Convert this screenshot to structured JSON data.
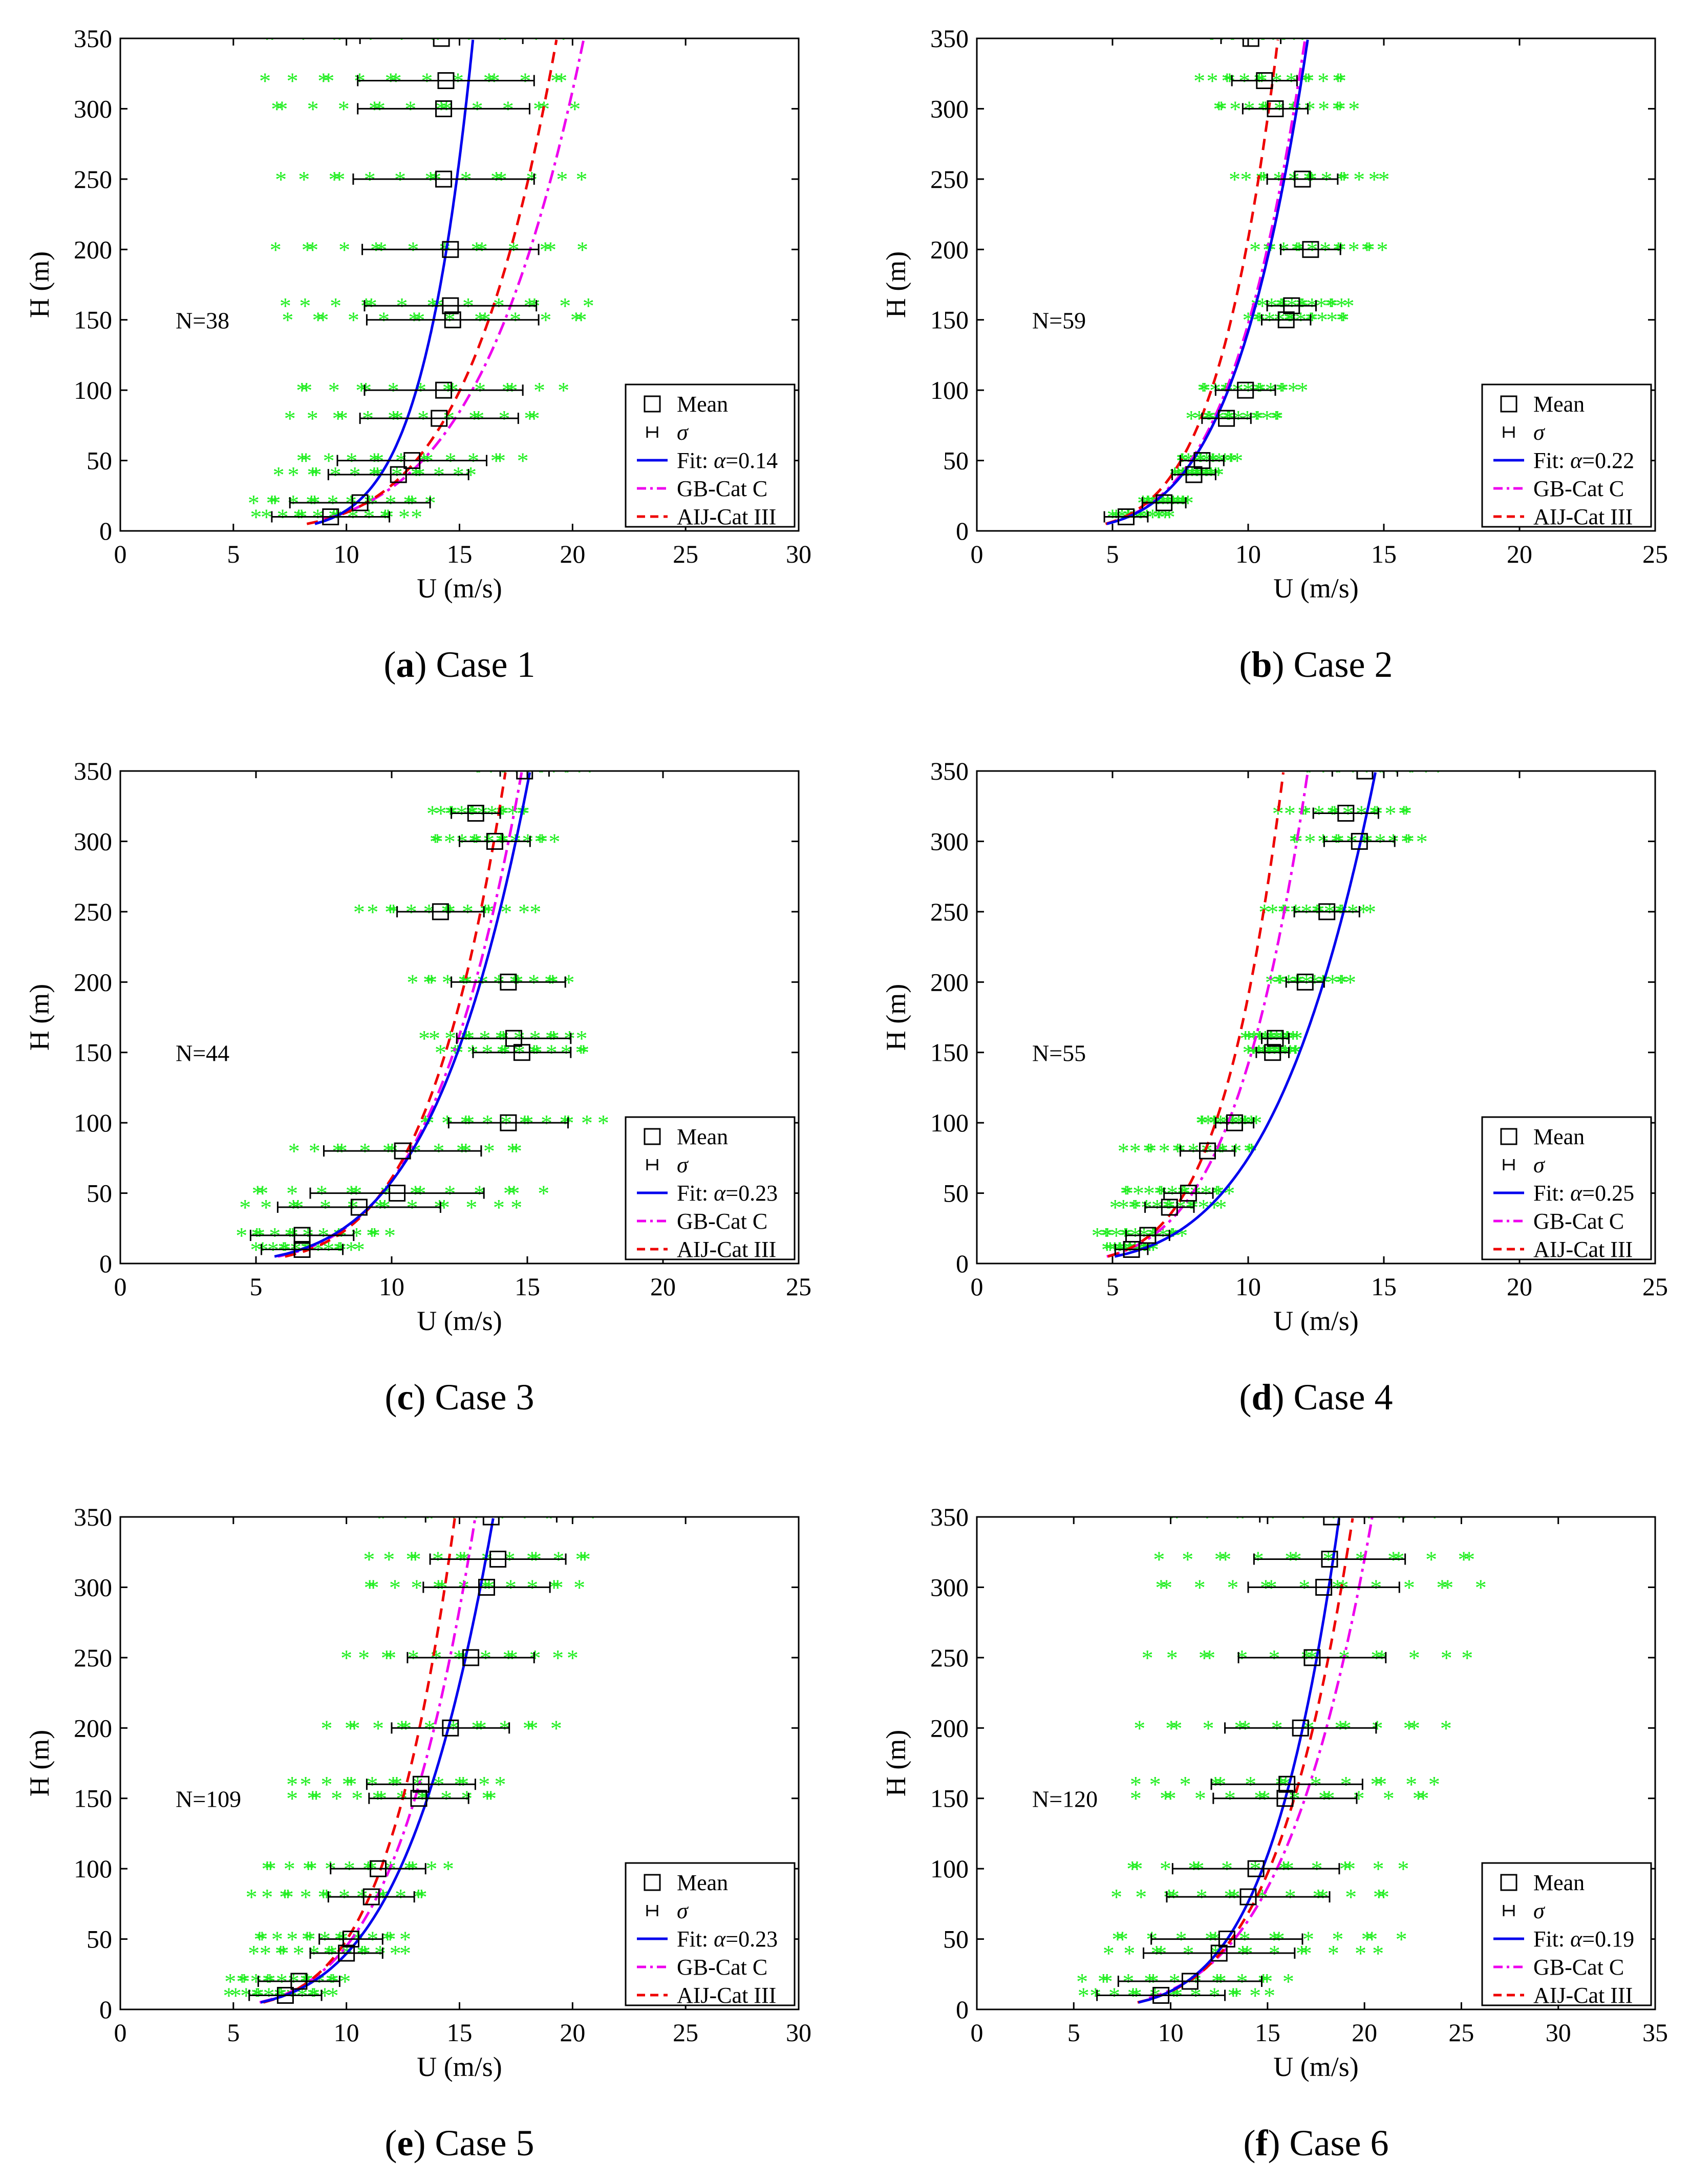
{
  "colors": {
    "scatter": "#22ee22",
    "fit": "#0000ee",
    "gb": "#ee00ee",
    "aij": "#ee0000",
    "axis": "#000000",
    "errorbar": "#000000",
    "mean_marker": "#000000"
  },
  "chart_data": [
    {
      "type": "line",
      "panel": "a",
      "caption_letter": "a",
      "caption_text": "Case 1",
      "n_label": "N=38",
      "xlabel": "U (m/s)",
      "ylabel": "H (m)",
      "xlim": [
        0,
        30
      ],
      "ylim": [
        0,
        350
      ],
      "xticks": [
        "0",
        "5",
        "10",
        "15",
        "20",
        "25",
        "30"
      ],
      "yticks": [
        "0",
        "50",
        "100",
        "150",
        "200",
        "250",
        "300",
        "350"
      ],
      "legend": {
        "mean": "Mean",
        "sigma": "σ",
        "fit_prefix": "Fit: ",
        "fit_alpha": "α",
        "fit_value": "=0.14",
        "gb": "GB-Cat C",
        "aij": "AIJ-Cat III"
      },
      "fit": {
        "alpha": 0.14,
        "u_ref": 15.6,
        "h_min": 5
      },
      "gb": {
        "alpha": 0.22,
        "u_ref": 20.5,
        "h_min": 8
      },
      "aij": {
        "alpha": 0.2,
        "u_ref": 19.3,
        "h_min": 5
      },
      "heights": [
        10,
        20,
        40,
        50,
        80,
        100,
        150,
        160,
        200,
        250,
        300,
        320,
        350
      ],
      "means": [
        9.3,
        10.6,
        12.3,
        12.9,
        14.1,
        14.3,
        14.7,
        14.6,
        14.6,
        14.3,
        14.3,
        14.4,
        14.2
      ],
      "sigma": [
        2.6,
        3.1,
        3.1,
        3.3,
        3.5,
        3.5,
        3.8,
        3.8,
        3.9,
        4.0,
        3.8,
        3.9,
        3.6
      ],
      "scatter": [
        [
          6.0,
          13.1
        ],
        [
          5.8,
          13.8
        ],
        [
          7.0,
          15.5
        ],
        [
          7.8,
          17.8
        ],
        [
          7.5,
          18.7
        ],
        [
          7.6,
          19.6
        ],
        [
          7.4,
          20.7
        ],
        [
          7.3,
          20.7
        ],
        [
          6.7,
          20.6
        ],
        [
          7.1,
          20.4
        ],
        [
          6.6,
          20.1
        ],
        [
          6.4,
          20.0
        ],
        [
          6.0,
          19.6
        ]
      ]
    },
    {
      "type": "line",
      "panel": "b",
      "caption_letter": "b",
      "caption_text": "Case 2",
      "n_label": "N=59",
      "xlabel": "U (m/s)",
      "ylabel": "H (m)",
      "xlim": [
        0,
        25
      ],
      "ylim": [
        0,
        350
      ],
      "xticks": [
        "0",
        "5",
        "10",
        "15",
        "20",
        "25"
      ],
      "yticks": [
        "0",
        "50",
        "100",
        "150",
        "200",
        "250",
        "300",
        "350"
      ],
      "legend": {
        "mean": "Mean",
        "sigma": "σ",
        "fit_prefix": "Fit: ",
        "fit_alpha": "α",
        "fit_value": "=0.22",
        "gb": "GB-Cat C",
        "aij": "AIJ-Cat III"
      },
      "fit": {
        "alpha": 0.22,
        "u_ref": 12.2,
        "h_min": 5
      },
      "gb": {
        "alpha": 0.22,
        "u_ref": 12.1,
        "h_min": 5
      },
      "aij": {
        "alpha": 0.2,
        "u_ref": 11.1,
        "h_min": 5
      },
      "heights": [
        10,
        20,
        40,
        50,
        80,
        100,
        150,
        160,
        200,
        250,
        300,
        320,
        350
      ],
      "means": [
        5.5,
        6.9,
        8.0,
        8.3,
        9.2,
        9.9,
        11.4,
        11.6,
        12.3,
        12.0,
        11.0,
        10.6,
        10.1
      ],
      "sigma": [
        0.8,
        0.8,
        0.8,
        0.8,
        0.9,
        1.1,
        0.9,
        0.9,
        1.1,
        1.3,
        1.2,
        1.2,
        1.1
      ],
      "scatter": [
        [
          5.0,
          7.1
        ],
        [
          6.1,
          7.8
        ],
        [
          7.3,
          8.9
        ],
        [
          7.5,
          9.6
        ],
        [
          7.9,
          11.2
        ],
        [
          8.2,
          12.0
        ],
        [
          10.0,
          13.6
        ],
        [
          10.3,
          13.7
        ],
        [
          10.2,
          15.0
        ],
        [
          9.5,
          15.0
        ],
        [
          8.8,
          13.9
        ],
        [
          8.2,
          13.6
        ],
        [
          8.5,
          12.0
        ]
      ]
    },
    {
      "type": "line",
      "panel": "c",
      "caption_letter": "c",
      "caption_text": "Case 3",
      "n_label": "N=44",
      "xlabel": "U (m/s)",
      "ylabel": "H (m)",
      "xlim": [
        0,
        25
      ],
      "ylim": [
        0,
        350
      ],
      "xticks": [
        "0",
        "5",
        "10",
        "15",
        "20",
        "25"
      ],
      "yticks": [
        "0",
        "50",
        "100",
        "150",
        "200",
        "250",
        "300",
        "350"
      ],
      "legend": {
        "mean": "Mean",
        "sigma": "σ",
        "fit_prefix": "Fit: ",
        "fit_alpha": "α",
        "fit_value": "=0.23",
        "gb": "GB-Cat C",
        "aij": "AIJ-Cat III"
      },
      "fit": {
        "alpha": 0.23,
        "u_ref": 15.1,
        "h_min": 5
      },
      "gb": {
        "alpha": 0.22,
        "u_ref": 14.8,
        "h_min": 5
      },
      "aij": {
        "alpha": 0.2,
        "u_ref": 14.2,
        "h_min": 5
      },
      "heights": [
        10,
        20,
        40,
        50,
        80,
        100,
        150,
        160,
        200,
        250,
        300,
        320,
        350
      ],
      "means": [
        6.7,
        6.7,
        8.8,
        10.2,
        10.4,
        14.3,
        14.8,
        14.5,
        14.3,
        11.8,
        13.8,
        13.1,
        14.9
      ],
      "sigma": [
        1.5,
        1.9,
        3.0,
        3.2,
        2.9,
        2.2,
        1.8,
        2.1,
        2.1,
        1.6,
        1.3,
        0.9,
        0.9
      ],
      "scatter": [
        [
          5.0,
          8.8
        ],
        [
          4.4,
          10.0
        ],
        [
          4.6,
          14.6
        ],
        [
          4.8,
          15.6
        ],
        [
          6.4,
          14.9
        ],
        [
          11.0,
          17.8
        ],
        [
          11.8,
          17.2
        ],
        [
          11.2,
          17.0
        ],
        [
          10.7,
          16.6
        ],
        [
          8.8,
          15.3
        ],
        [
          11.5,
          16.0
        ],
        [
          11.5,
          15.0
        ],
        [
          13.0,
          17.3
        ]
      ]
    },
    {
      "type": "line",
      "panel": "d",
      "caption_letter": "d",
      "caption_text": "Case 4",
      "n_label": "N=55",
      "xlabel": "U (m/s)",
      "ylabel": "H (m)",
      "xlim": [
        0,
        25
      ],
      "ylim": [
        0,
        350
      ],
      "xticks": [
        "0",
        "5",
        "10",
        "15",
        "20",
        "25"
      ],
      "yticks": [
        "0",
        "50",
        "100",
        "150",
        "200",
        "250",
        "300",
        "350"
      ],
      "legend": {
        "mean": "Mean",
        "sigma": "σ",
        "fit_prefix": "Fit: ",
        "fit_alpha": "α",
        "fit_value": "=0.25",
        "gb": "GB-Cat C",
        "aij": "AIJ-Cat III"
      },
      "fit": {
        "alpha": 0.25,
        "u_ref": 14.7,
        "h_min": 5
      },
      "gb": {
        "alpha": 0.22,
        "u_ref": 12.2,
        "h_min": 5
      },
      "aij": {
        "alpha": 0.2,
        "u_ref": 11.3,
        "h_min": 5
      },
      "heights": [
        10,
        20,
        40,
        50,
        80,
        100,
        150,
        160,
        200,
        250,
        300,
        320,
        350
      ],
      "means": [
        5.7,
        6.3,
        7.1,
        7.8,
        8.5,
        9.5,
        10.9,
        11.0,
        12.1,
        12.9,
        14.1,
        13.6,
        14.3
      ],
      "sigma": [
        0.6,
        0.8,
        0.9,
        0.9,
        1.0,
        0.7,
        0.6,
        0.5,
        0.7,
        1.2,
        1.3,
        1.2,
        1.2
      ],
      "scatter": [
        [
          4.8,
          6.5
        ],
        [
          4.4,
          7.6
        ],
        [
          5.1,
          9.0
        ],
        [
          5.4,
          9.3
        ],
        [
          5.4,
          10.3
        ],
        [
          8.2,
          10.3
        ],
        [
          10.0,
          11.8
        ],
        [
          9.9,
          11.8
        ],
        [
          10.8,
          13.8
        ],
        [
          10.6,
          14.5
        ],
        [
          11.6,
          16.4
        ],
        [
          11.1,
          16.0
        ],
        [
          12.0,
          17.0
        ]
      ]
    },
    {
      "type": "line",
      "panel": "e",
      "caption_letter": "e",
      "caption_text": "Case 5",
      "n_label": "N=109",
      "xlabel": "U (m/s)",
      "ylabel": "H (m)",
      "xlim": [
        0,
        30
      ],
      "ylim": [
        0,
        350
      ],
      "xticks": [
        "0",
        "5",
        "10",
        "15",
        "20",
        "25",
        "30"
      ],
      "yticks": [
        "0",
        "50",
        "100",
        "150",
        "200",
        "250",
        "300",
        "350"
      ],
      "legend": {
        "mean": "Mean",
        "sigma": "σ",
        "fit_prefix": "Fit: ",
        "fit_alpha": "α",
        "fit_value": "=0.23",
        "gb": "GB-Cat C",
        "aij": "AIJ-Cat III"
      },
      "fit": {
        "alpha": 0.23,
        "u_ref": 16.5,
        "h_min": 5
      },
      "gb": {
        "alpha": 0.22,
        "u_ref": 15.7,
        "h_min": 5
      },
      "aij": {
        "alpha": 0.2,
        "u_ref": 14.8,
        "h_min": 5
      },
      "heights": [
        10,
        20,
        40,
        50,
        80,
        100,
        150,
        160,
        200,
        250,
        300,
        320,
        350
      ],
      "means": [
        7.3,
        7.9,
        10.0,
        10.2,
        11.1,
        11.4,
        13.2,
        13.3,
        14.6,
        15.5,
        16.2,
        16.7,
        16.4
      ],
      "sigma": [
        1.6,
        1.8,
        1.6,
        1.4,
        1.9,
        2.1,
        2.2,
        2.4,
        2.6,
        2.8,
        2.8,
        3.0,
        2.9
      ],
      "scatter": [
        [
          4.8,
          9.4
        ],
        [
          4.8,
          10.0
        ],
        [
          5.9,
          12.6
        ],
        [
          6.0,
          12.6
        ],
        [
          5.8,
          13.6
        ],
        [
          6.2,
          14.5
        ],
        [
          7.6,
          16.6
        ],
        [
          7.6,
          16.8
        ],
        [
          9.0,
          19.4
        ],
        [
          10.0,
          20.0
        ],
        [
          10.8,
          20.3
        ],
        [
          11.0,
          20.9
        ],
        [
          11.1,
          20.9
        ]
      ]
    },
    {
      "type": "line",
      "panel": "f",
      "caption_letter": "f",
      "caption_text": "Case 6",
      "n_label": "N=120",
      "xlabel": "U (m/s)",
      "ylabel": "H (m)",
      "xlim": [
        0,
        35
      ],
      "ylim": [
        0,
        350
      ],
      "xticks": [
        "0",
        "5",
        "10",
        "15",
        "20",
        "25",
        "30",
        "35"
      ],
      "yticks": [
        "0",
        "50",
        "100",
        "150",
        "200",
        "250",
        "300",
        "350"
      ],
      "legend": {
        "mean": "Mean",
        "sigma": "σ",
        "fit_prefix": "Fit: ",
        "fit_alpha": "α",
        "fit_value": "=0.19",
        "gb": "GB-Cat C",
        "aij": "AIJ-Cat III"
      },
      "fit": {
        "alpha": 0.19,
        "u_ref": 18.7,
        "h_min": 5
      },
      "gb": {
        "alpha": 0.22,
        "u_ref": 20.4,
        "h_min": 8
      },
      "aij": {
        "alpha": 0.2,
        "u_ref": 19.4,
        "h_min": 5
      },
      "heights": [
        10,
        20,
        40,
        50,
        80,
        100,
        150,
        160,
        200,
        250,
        300,
        320,
        350
      ],
      "means": [
        9.5,
        11.0,
        12.5,
        12.9,
        14.0,
        14.4,
        15.9,
        16.0,
        16.7,
        17.3,
        17.9,
        18.2,
        18.3
      ],
      "sigma": [
        3.3,
        3.7,
        3.9,
        3.9,
        4.2,
        4.3,
        3.7,
        3.9,
        3.9,
        3.8,
        3.9,
        3.9,
        3.7
      ],
      "scatter": [
        [
          5.5,
          15.1
        ],
        [
          5.3,
          16.2
        ],
        [
          6.8,
          20.7
        ],
        [
          6.9,
          21.9
        ],
        [
          7.2,
          21.5
        ],
        [
          7.5,
          22.0
        ],
        [
          8.2,
          23.4
        ],
        [
          8.2,
          23.6
        ],
        [
          8.2,
          24.4
        ],
        [
          8.8,
          25.3
        ],
        [
          9.1,
          26.0
        ],
        [
          9.4,
          26.0
        ],
        [
          9.5,
          25.0
        ]
      ]
    }
  ]
}
